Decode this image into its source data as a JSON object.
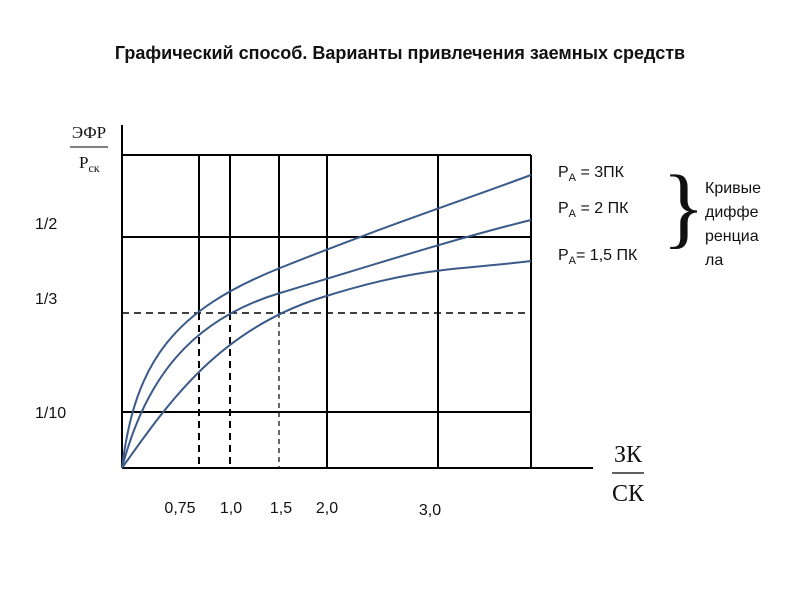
{
  "title": "Графический способ. Варианты привлечения заемных средств",
  "y_axis": {
    "label_top": "ЭФР",
    "label_bottom_main": "Р",
    "label_bottom_sub": "ск",
    "ticks": [
      "1/2",
      "1/3",
      "1/10"
    ]
  },
  "x_axis": {
    "label_top": "ЗК",
    "label_bottom": "СК",
    "ticks": [
      "0,75",
      "1,0",
      "1,5",
      "2,0",
      "3,0"
    ]
  },
  "curve_labels": [
    {
      "main": "Р",
      "sub": "А",
      "rest": " = 3ПК"
    },
    {
      "main": "Р",
      "sub": "А",
      "rest": " = 2 ПК"
    },
    {
      "main": "Р",
      "sub": "А",
      "rest": "= 1,5 ПК"
    }
  ],
  "brace_note": [
    "Кривые",
    "диффе",
    "ренциа",
    "ла"
  ]
}
